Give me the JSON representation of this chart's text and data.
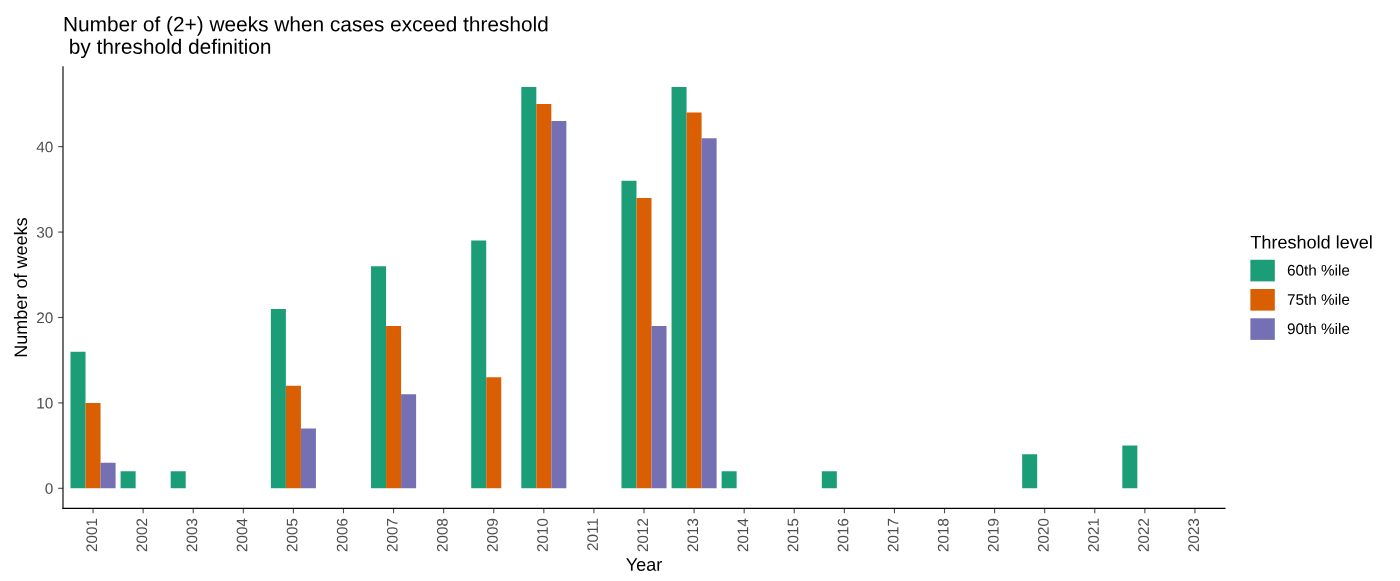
{
  "chart_data": {
    "type": "bar",
    "title": "Number of (2+) weeks when cases exceed threshold\n by threshold definition",
    "xlabel": "Year",
    "ylabel": "Number of weeks",
    "legend_title": "Threshold level",
    "categories": [
      "2001",
      "2002",
      "2003",
      "2004",
      "2005",
      "2006",
      "2007",
      "2008",
      "2009",
      "2010",
      "2011",
      "2012",
      "2013",
      "2014",
      "2015",
      "2016",
      "2017",
      "2018",
      "2019",
      "2020",
      "2021",
      "2022",
      "2023"
    ],
    "series": [
      {
        "name": "60th %ile",
        "color": "#1b9e77",
        "values": [
          16,
          2,
          2,
          0,
          21,
          0,
          26,
          0,
          29,
          47,
          0,
          36,
          47,
          2,
          0,
          2,
          0,
          0,
          0,
          4,
          0,
          5,
          0
        ]
      },
      {
        "name": "75th %ile",
        "color": "#d95f02",
        "values": [
          10,
          0,
          0,
          0,
          12,
          0,
          19,
          0,
          13,
          45,
          0,
          34,
          44,
          0,
          0,
          0,
          0,
          0,
          0,
          0,
          0,
          0,
          0
        ]
      },
      {
        "name": "90th %ile",
        "color": "#7570b3",
        "values": [
          3,
          0,
          0,
          0,
          7,
          0,
          11,
          0,
          0,
          43,
          0,
          19,
          41,
          0,
          0,
          0,
          0,
          0,
          0,
          0,
          0,
          0,
          0
        ]
      }
    ],
    "ylim": [
      -2.35,
      49.35
    ],
    "yticks": [
      0,
      10,
      20,
      30,
      40
    ],
    "grid": false,
    "legend": "right"
  }
}
